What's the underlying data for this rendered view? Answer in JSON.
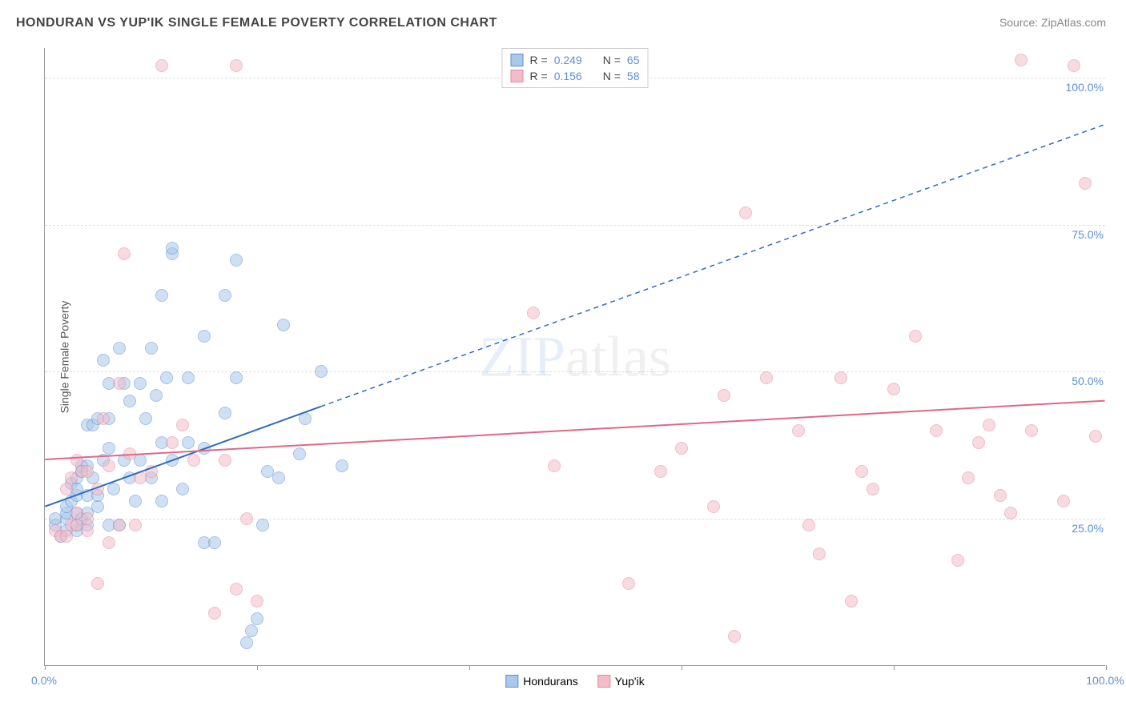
{
  "title": "HONDURAN VS YUP'IK SINGLE FEMALE POVERTY CORRELATION CHART",
  "source_label": "Source: ZipAtlas.com",
  "ylabel": "Single Female Poverty",
  "watermark": {
    "part1": "ZIP",
    "part2": "atlas"
  },
  "chart": {
    "type": "scatter",
    "background_color": "#ffffff",
    "grid_color": "#dddddd",
    "axis_color": "#999999",
    "tick_label_color": "#5b8fd6",
    "xlim": [
      0,
      100
    ],
    "ylim": [
      0,
      105
    ],
    "xtick_positions": [
      0,
      20,
      40,
      60,
      80,
      100
    ],
    "xtick_labels": [
      "0.0%",
      "",
      "",
      "",
      "",
      "100.0%"
    ],
    "ytick_positions": [
      25,
      50,
      75,
      100
    ],
    "ytick_labels": [
      "25.0%",
      "50.0%",
      "75.0%",
      "100.0%"
    ],
    "title_fontsize": 16,
    "label_fontsize": 14,
    "marker_radius": 8,
    "marker_opacity": 0.55,
    "series": [
      {
        "name": "Hondurans",
        "color_fill": "#a9c8ea",
        "color_stroke": "#5b8fd6",
        "R": "0.249",
        "N": "65",
        "trend": {
          "x1": 0,
          "y1": 27,
          "x2_solid": 26,
          "y2_solid": 44,
          "x2": 100,
          "y2": 92,
          "stroke": "#2e6bc0",
          "width": 2
        },
        "points": [
          [
            1,
            24
          ],
          [
            1,
            25
          ],
          [
            1.5,
            22
          ],
          [
            2,
            23
          ],
          [
            2,
            25
          ],
          [
            2,
            26
          ],
          [
            2,
            27
          ],
          [
            2.5,
            28
          ],
          [
            2.5,
            31
          ],
          [
            3,
            23
          ],
          [
            3,
            24
          ],
          [
            3,
            26
          ],
          [
            3,
            29
          ],
          [
            3,
            30
          ],
          [
            3,
            32
          ],
          [
            3.5,
            25
          ],
          [
            3.5,
            33
          ],
          [
            3.5,
            34
          ],
          [
            4,
            24
          ],
          [
            4,
            26
          ],
          [
            4,
            29
          ],
          [
            4,
            34
          ],
          [
            4,
            41
          ],
          [
            4.5,
            32
          ],
          [
            4.5,
            41
          ],
          [
            5,
            27
          ],
          [
            5,
            29
          ],
          [
            5,
            42
          ],
          [
            5.5,
            35
          ],
          [
            5.5,
            52
          ],
          [
            6,
            24
          ],
          [
            6,
            37
          ],
          [
            6,
            42
          ],
          [
            6,
            48
          ],
          [
            6.5,
            30
          ],
          [
            7,
            24
          ],
          [
            7,
            54
          ],
          [
            7.5,
            35
          ],
          [
            7.5,
            48
          ],
          [
            8,
            32
          ],
          [
            8,
            45
          ],
          [
            8.5,
            28
          ],
          [
            9,
            35
          ],
          [
            9,
            48
          ],
          [
            9.5,
            42
          ],
          [
            10,
            32
          ],
          [
            10,
            54
          ],
          [
            10.5,
            46
          ],
          [
            11,
            28
          ],
          [
            11,
            38
          ],
          [
            11,
            63
          ],
          [
            11.5,
            49
          ],
          [
            12,
            35
          ],
          [
            12,
            70
          ],
          [
            12,
            71
          ],
          [
            13,
            30
          ],
          [
            13.5,
            38
          ],
          [
            13.5,
            49
          ],
          [
            15,
            21
          ],
          [
            15,
            37
          ],
          [
            15,
            56
          ],
          [
            16,
            21
          ],
          [
            17,
            43
          ],
          [
            17,
            63
          ],
          [
            18,
            49
          ],
          [
            18,
            69
          ],
          [
            19,
            4
          ],
          [
            19.5,
            6
          ],
          [
            20,
            8
          ],
          [
            20.5,
            24
          ],
          [
            21,
            33
          ],
          [
            22,
            32
          ],
          [
            22.5,
            58
          ],
          [
            24,
            36
          ],
          [
            24.5,
            42
          ],
          [
            26,
            50
          ],
          [
            28,
            34
          ]
        ]
      },
      {
        "name": "Yup'ik",
        "color_fill": "#f3bcc9",
        "color_stroke": "#e08aa0",
        "R": "0.156",
        "N": "58",
        "trend": {
          "x1": 0,
          "y1": 35,
          "x2_solid": 100,
          "y2_solid": 45,
          "x2": 100,
          "y2": 45,
          "stroke": "#e06787",
          "width": 2
        },
        "points": [
          [
            1,
            23
          ],
          [
            1.5,
            22
          ],
          [
            2,
            22
          ],
          [
            2,
            30
          ],
          [
            2.5,
            24
          ],
          [
            2.5,
            32
          ],
          [
            3,
            24
          ],
          [
            3,
            26
          ],
          [
            3,
            35
          ],
          [
            3.5,
            33
          ],
          [
            4,
            23
          ],
          [
            4,
            25
          ],
          [
            4,
            33
          ],
          [
            5,
            14
          ],
          [
            5,
            30
          ],
          [
            5.5,
            42
          ],
          [
            6,
            21
          ],
          [
            6,
            34
          ],
          [
            7,
            24
          ],
          [
            7,
            48
          ],
          [
            7.5,
            70
          ],
          [
            8,
            36
          ],
          [
            8.5,
            24
          ],
          [
            9,
            32
          ],
          [
            10,
            33
          ],
          [
            11,
            102
          ],
          [
            12,
            38
          ],
          [
            13,
            41
          ],
          [
            14,
            35
          ],
          [
            16,
            9
          ],
          [
            17,
            35
          ],
          [
            18,
            13
          ],
          [
            18,
            102
          ],
          [
            19,
            25
          ],
          [
            20,
            11
          ],
          [
            46,
            60
          ],
          [
            48,
            34
          ],
          [
            55,
            14
          ],
          [
            58,
            33
          ],
          [
            60,
            37
          ],
          [
            63,
            27
          ],
          [
            64,
            46
          ],
          [
            65,
            5
          ],
          [
            66,
            77
          ],
          [
            68,
            49
          ],
          [
            71,
            40
          ],
          [
            72,
            24
          ],
          [
            73,
            19
          ],
          [
            75,
            49
          ],
          [
            76,
            11
          ],
          [
            77,
            33
          ],
          [
            78,
            30
          ],
          [
            80,
            47
          ],
          [
            82,
            56
          ],
          [
            84,
            40
          ],
          [
            86,
            18
          ],
          [
            87,
            32
          ],
          [
            88,
            38
          ],
          [
            89,
            41
          ],
          [
            90,
            29
          ],
          [
            91,
            26
          ],
          [
            92,
            103
          ],
          [
            93,
            40
          ],
          [
            96,
            28
          ],
          [
            97,
            102
          ],
          [
            98,
            82
          ],
          [
            99,
            39
          ]
        ]
      }
    ]
  },
  "legend_top": {
    "R_label": "R =",
    "N_label": "N ="
  },
  "legend_bottom": {
    "items": [
      "Hondurans",
      "Yup'ik"
    ]
  }
}
